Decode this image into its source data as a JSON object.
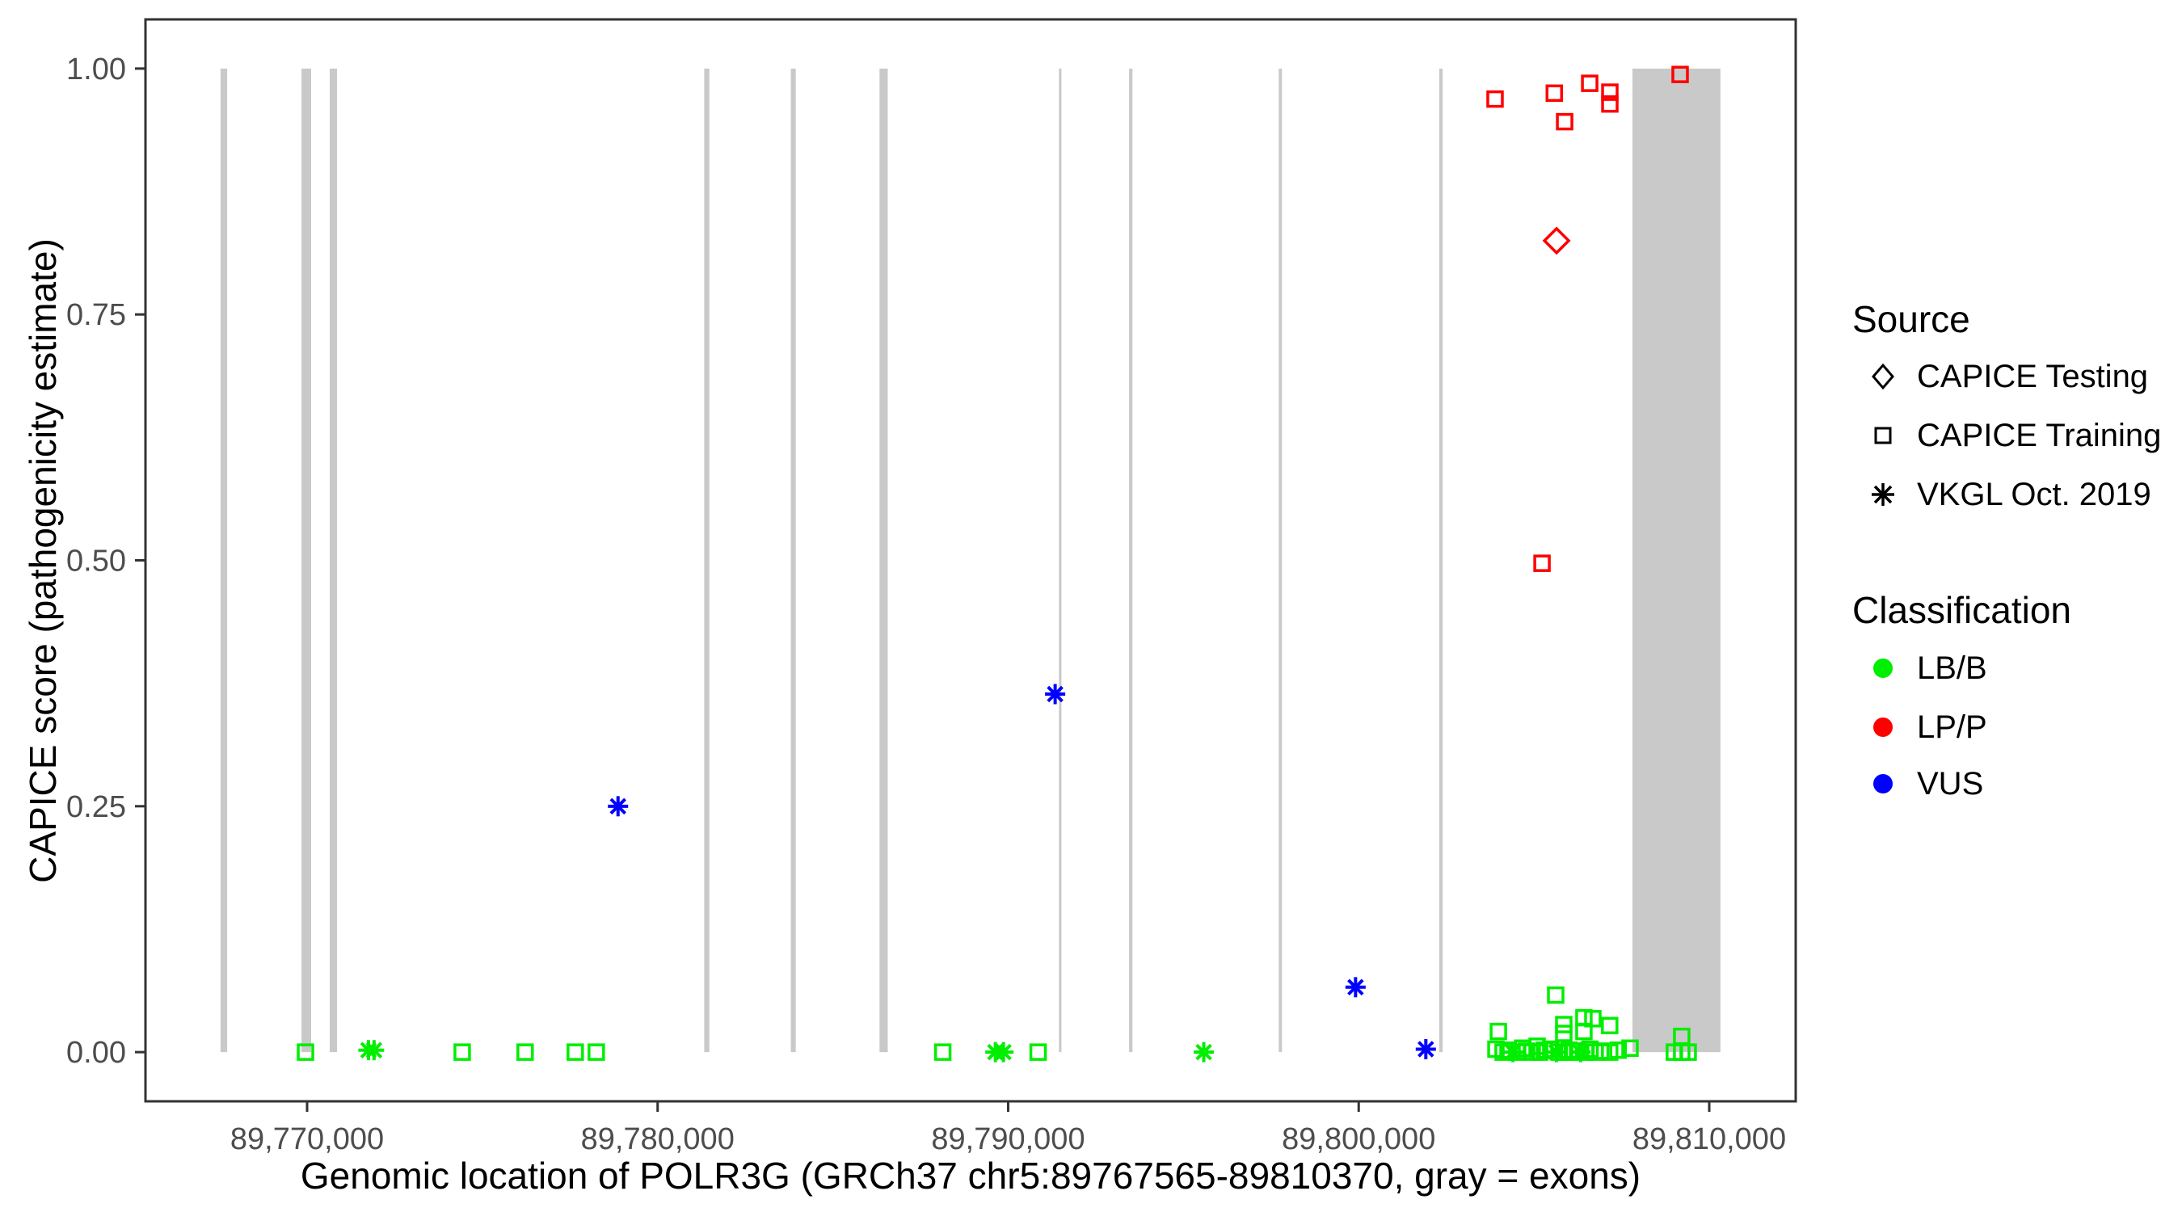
{
  "axes": {
    "x": {
      "label": "Genomic location of POLR3G (GRCh37 chr5:89767565-89810370, gray = exons)",
      "ticks": [
        89770000,
        89780000,
        89790000,
        89800000,
        89810000
      ],
      "tick_labels": [
        "89,770,000",
        "89,780,000",
        "89,790,000",
        "89,800,000",
        "89,810,000"
      ],
      "range": [
        89765389,
        89812467
      ]
    },
    "y": {
      "label": "CAPICE score (pathogenicity estimate)",
      "ticks": [
        0.0,
        0.25,
        0.5,
        0.75,
        1.0
      ],
      "tick_labels": [
        "0.00",
        "0.25",
        "0.50",
        "0.75",
        "1.00"
      ],
      "range": [
        -0.05,
        1.05
      ]
    }
  },
  "colors": {
    "LB/B": "#00EE00",
    "LP/P": "#FF0000",
    "VUS": "#0000FF",
    "exon": "#C9C9C9",
    "axis_text": "#4D4D4D",
    "panel_border": "#333333"
  },
  "legend": {
    "source": {
      "title": "Source",
      "items": [
        {
          "label": "CAPICE Testing",
          "shape": "diamond"
        },
        {
          "label": "CAPICE Training",
          "shape": "square"
        },
        {
          "label": "VKGL Oct. 2019",
          "shape": "asterisk"
        }
      ]
    },
    "classification": {
      "title": "Classification",
      "items": [
        {
          "label": "LB/B",
          "color_key": "LB/B"
        },
        {
          "label": "LP/P",
          "color_key": "LP/P"
        },
        {
          "label": "VUS",
          "color_key": "VUS"
        }
      ]
    }
  },
  "chart_data": {
    "type": "scatter",
    "title": "",
    "xlabel": "Genomic location of POLR3G (GRCh37 chr5:89767565-89810370, gray = exons)",
    "ylabel": "CAPICE score (pathogenicity estimate)",
    "x_range": [
      89765389,
      89812467
    ],
    "y_range": [
      -0.05,
      1.05
    ],
    "grid": false,
    "legend_position": "right",
    "exons_note": "gray rectangles span score 0 to 1",
    "exons": [
      [
        89767530,
        89767720
      ],
      [
        89769840,
        89770115
      ],
      [
        89770645,
        89770855
      ],
      [
        89781330,
        89781475
      ],
      [
        89783800,
        89783940
      ],
      [
        89786330,
        89786565
      ],
      [
        89791450,
        89791520
      ],
      [
        89793450,
        89793545
      ],
      [
        89797720,
        89797810
      ],
      [
        89802300,
        89802395
      ],
      [
        89807810,
        89810320
      ]
    ],
    "series": [
      {
        "name": "LB/B - CAPICE Training",
        "classification": "LB/B",
        "source": "CAPICE Training",
        "marker": "square",
        "points": [
          [
            89769955,
            0.0
          ],
          [
            89774425,
            0.0
          ],
          [
            89776220,
            0.0
          ],
          [
            89777650,
            0.0
          ],
          [
            89778250,
            0.0
          ],
          [
            89788135,
            0.0
          ],
          [
            89790855,
            0.0
          ],
          [
            89803915,
            0.003
          ],
          [
            89803985,
            0.021
          ],
          [
            89804120,
            0.0
          ],
          [
            89804260,
            0.002
          ],
          [
            89804515,
            0.0
          ],
          [
            89804680,
            0.004
          ],
          [
            89804790,
            0.001
          ],
          [
            89804950,
            0.0
          ],
          [
            89805090,
            0.006
          ],
          [
            89805160,
            0.0
          ],
          [
            89805300,
            0.002
          ],
          [
            89805480,
            0.003
          ],
          [
            89805620,
            0.058
          ],
          [
            89805720,
            0.0
          ],
          [
            89805850,
            0.028
          ],
          [
            89805850,
            0.019
          ],
          [
            89805875,
            0.0
          ],
          [
            89806000,
            0.002
          ],
          [
            89806100,
            0.0
          ],
          [
            89806245,
            0.001
          ],
          [
            89806425,
            0.035
          ],
          [
            89806425,
            0.021
          ],
          [
            89806470,
            0.0
          ],
          [
            89806600,
            0.003
          ],
          [
            89806680,
            0.034
          ],
          [
            89806745,
            0.0
          ],
          [
            89806900,
            0.001
          ],
          [
            89807160,
            0.027
          ],
          [
            89807160,
            0.0
          ],
          [
            89807400,
            0.002
          ],
          [
            89807740,
            0.004
          ],
          [
            89809005,
            0.0
          ],
          [
            89809215,
            0.016
          ],
          [
            89809215,
            0.0
          ],
          [
            89809400,
            0.0
          ]
        ]
      },
      {
        "name": "LB/B - VKGL Oct. 2019",
        "classification": "LB/B",
        "source": "VKGL Oct. 2019",
        "marker": "asterisk",
        "points": [
          [
            89771750,
            0.002
          ],
          [
            89771910,
            0.002
          ],
          [
            89789635,
            0.0
          ],
          [
            89789865,
            0.0
          ],
          [
            89795580,
            0.0
          ],
          [
            89804400,
            0.0
          ],
          [
            89805640,
            0.0
          ],
          [
            89806330,
            0.0
          ]
        ]
      },
      {
        "name": "VUS - VKGL Oct. 2019",
        "classification": "VUS",
        "source": "VKGL Oct. 2019",
        "marker": "asterisk",
        "points": [
          [
            89778870,
            0.25
          ],
          [
            89791340,
            0.364
          ],
          [
            89799910,
            0.066
          ],
          [
            89801915,
            0.003
          ]
        ]
      },
      {
        "name": "LP/P - CAPICE Training",
        "classification": "LP/P",
        "source": "CAPICE Training",
        "marker": "square",
        "points": [
          [
            89803890,
            0.969
          ],
          [
            89805230,
            0.497
          ],
          [
            89805580,
            0.975
          ],
          [
            89805875,
            0.946
          ],
          [
            89806590,
            0.985
          ],
          [
            89807165,
            0.976
          ],
          [
            89807165,
            0.964
          ],
          [
            89809170,
            0.994
          ]
        ]
      },
      {
        "name": "LP/P - CAPICE Testing",
        "classification": "LP/P",
        "source": "CAPICE Testing",
        "marker": "diamond",
        "points": [
          [
            89805645,
            0.825
          ]
        ]
      }
    ]
  }
}
